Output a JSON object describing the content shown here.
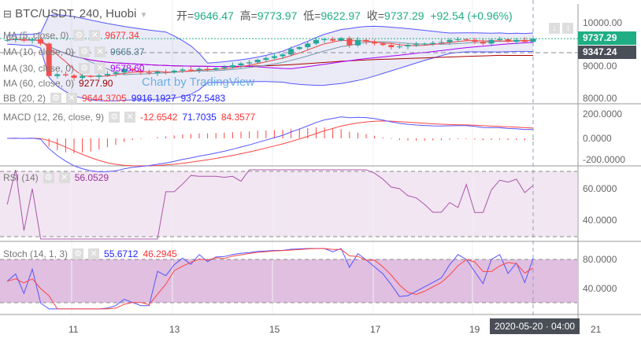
{
  "header": {
    "symbol": "BTC/USDT, 240, Huobi",
    "open_label": "开=",
    "open": "9646.47",
    "high_label": "高=",
    "high": "9773.97",
    "low_label": "低=",
    "low": "9622.97",
    "close_label": "收=",
    "close": "9737.29",
    "change": "+92.54 (+0.96%)"
  },
  "watermark": "Chart by TradingView",
  "legends": {
    "ma5": {
      "label": "MA (5, close, 0)",
      "value": "9677.34"
    },
    "ma10": {
      "label": "MA (10, close, 0)",
      "value": "9665.37"
    },
    "ma30": {
      "label": "MA (30, close, 0)",
      "value": "9578.60"
    },
    "ma60": {
      "label": "MA (60, close, 0)",
      "value": "9277.90"
    },
    "bb": {
      "label": "BB (20, 2)",
      "v1": "9644.3705",
      "v2": "9916.1927",
      "v3": "9372.5483"
    },
    "macd": {
      "label": "MACD (12, 26, close, 9)",
      "v1": "-12.6542",
      "v2": "71.7035",
      "v3": "84.3577"
    },
    "rsi": {
      "label": "RSI (14)",
      "value": "56.0529"
    },
    "stoch": {
      "label": "Stoch (14, 1, 3)",
      "v1": "55.6712",
      "v2": "46.2945"
    }
  },
  "price_axis": [
    "10000.00",
    "9000.00",
    "8000.00"
  ],
  "price_tags": {
    "last": "9737.29",
    "line": "9347.24"
  },
  "macd_axis": [
    "200.0000",
    "0.0000",
    "-200.0000"
  ],
  "rsi_axis": [
    "60.0000",
    "40.0000"
  ],
  "stoch_axis": [
    "80.0000",
    "40.0000"
  ],
  "time_axis": [
    "11",
    "13",
    "15",
    "17",
    "19",
    "21"
  ],
  "crosshair_time": "2020-05-20 · 04:00",
  "colors": {
    "up": "#26a69a",
    "down": "#ef5350",
    "accent": "#1fae84"
  },
  "chart_data": {
    "type": "candlestick",
    "interval": "240",
    "closes": [
      9700,
      9720,
      9680,
      9720,
      9600,
      8700,
      8750,
      8720,
      8650,
      8700,
      8680,
      8720,
      8760,
      8800,
      8900,
      8850,
      8800,
      8780,
      8820,
      8800,
      8850,
      8880,
      8860,
      8900,
      8880,
      8920,
      8950,
      9000,
      9050,
      9080,
      9150,
      9200,
      9250,
      9300,
      9450,
      9500,
      9600,
      9700,
      9720,
      9680,
      9750,
      9550,
      9700,
      9650,
      9600,
      9560,
      9500,
      9520,
      9560,
      9580,
      9600,
      9620,
      9640,
      9700,
      9720,
      9700,
      9650,
      9600,
      9700,
      9720,
      9650,
      9700,
      9646,
      9737
    ]
  }
}
